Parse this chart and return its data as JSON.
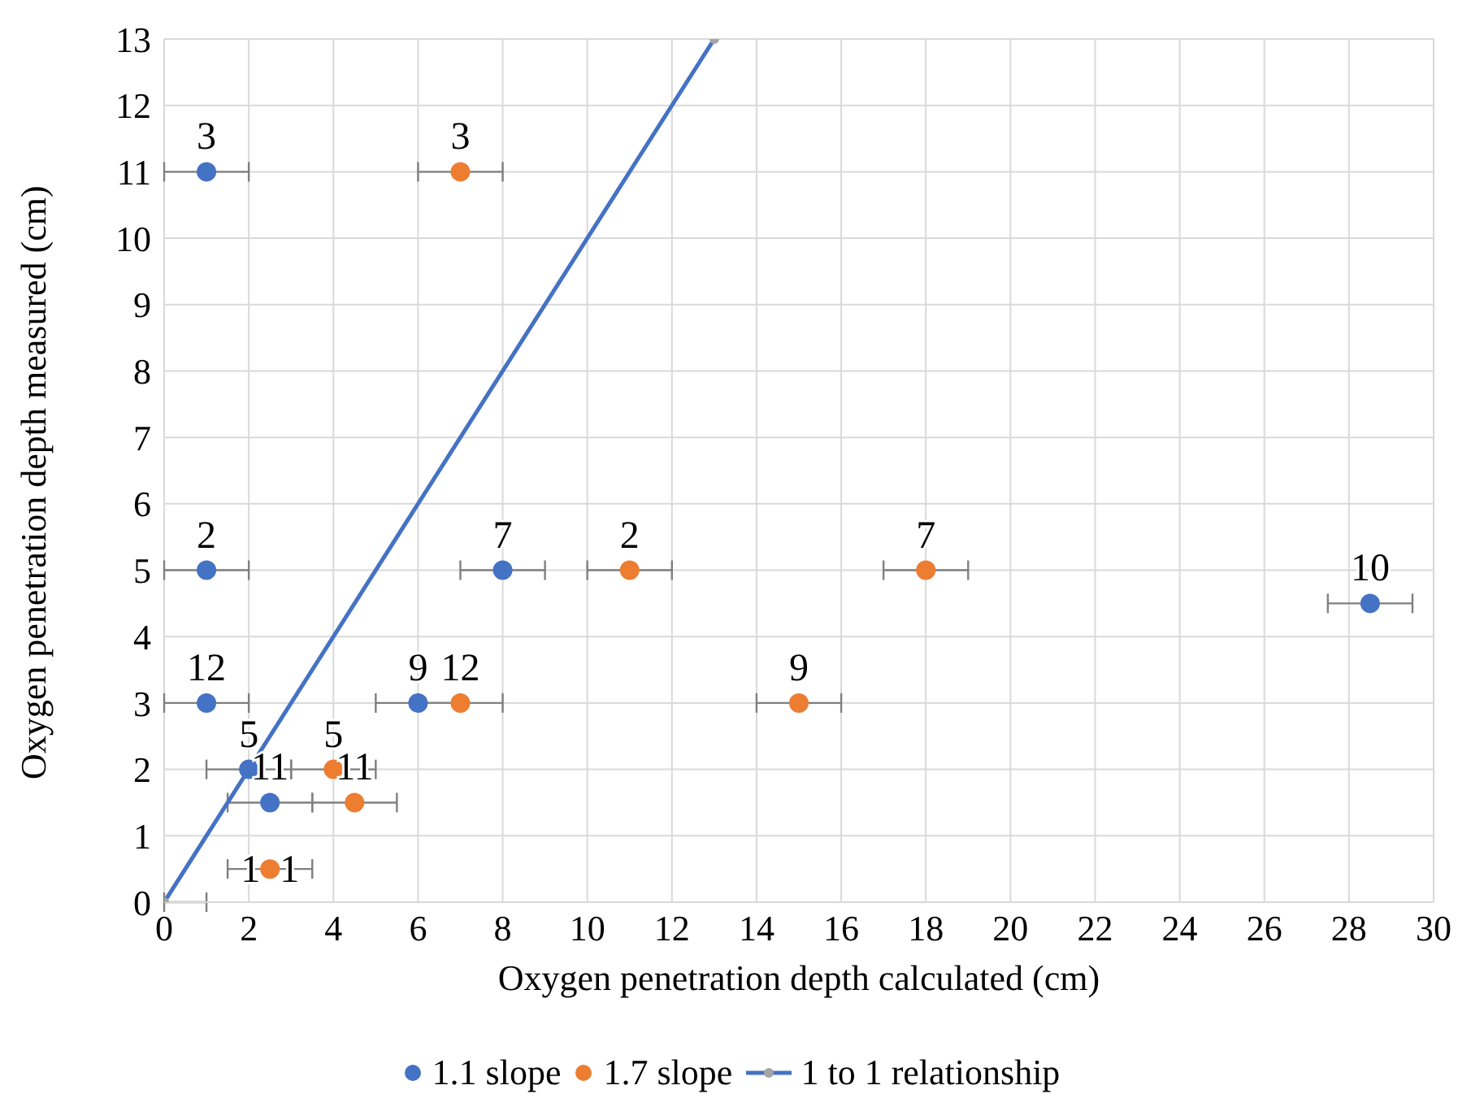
{
  "chart_data": {
    "type": "scatter",
    "xlabel": "Oxygen penetration depth calculated (cm)",
    "ylabel": "Oxygen penetration depth measured (cm)",
    "xlim": [
      0,
      30
    ],
    "xticks": [
      0,
      2,
      4,
      6,
      8,
      10,
      12,
      14,
      16,
      18,
      20,
      22,
      24,
      26,
      28,
      30
    ],
    "ylim": [
      0,
      13
    ],
    "yticks": [
      0,
      1,
      2,
      3,
      4,
      5,
      6,
      7,
      8,
      9,
      10,
      11,
      12,
      13
    ],
    "grid": true,
    "legend": "bottom",
    "marker": "circle",
    "series": [
      {
        "name": "1.1 slope",
        "color": "#4472c4",
        "x": [
          1,
          1,
          1,
          2,
          2.5,
          8,
          6,
          28.5
        ],
        "values": [
          11,
          5,
          3,
          2,
          1.5,
          5,
          3,
          4.5
        ],
        "xerrors": [
          1,
          1,
          1,
          1,
          1,
          1,
          1,
          1
        ]
      },
      {
        "name": "1.7 slope",
        "color": "#ed7d31",
        "x": [
          7,
          11,
          18,
          15,
          7,
          4,
          4.5,
          2.5
        ],
        "values": [
          11,
          5,
          5,
          3,
          3,
          2,
          1.5,
          0.5
        ],
        "xerrors": [
          1,
          1,
          1,
          1,
          1,
          1,
          1,
          1
        ]
      },
      {
        "name": "1 to 1 relationship",
        "type": "line",
        "color": "#4472c4",
        "colors": [
          "#a5a5a5",
          "#a5a5a5"
        ],
        "x": [
          0,
          13
        ],
        "values": [
          0,
          13
        ],
        "xerrors": [
          [
            0,
            1
          ],
          null
        ]
      }
    ],
    "annotations": [
      {
        "text": "3",
        "x": 1,
        "y": 11
      },
      {
        "text": "2",
        "x": 1,
        "y": 5
      },
      {
        "text": "12",
        "x": 1,
        "y": 3
      },
      {
        "text": "5",
        "x": 2,
        "y": 2
      },
      {
        "text": "11",
        "x": 2.5,
        "y": 1.5
      },
      {
        "text": "7",
        "x": 8,
        "y": 5
      },
      {
        "text": "9",
        "x": 6,
        "y": 3
      },
      {
        "text": "10",
        "x": 28.5,
        "y": 4.5
      },
      {
        "text": "1",
        "x": 2.5,
        "y": 0.5
      },
      {
        "text": "3",
        "x": 7,
        "y": 11
      },
      {
        "text": "2",
        "x": 11,
        "y": 5
      },
      {
        "text": "7",
        "x": 18,
        "y": 5
      },
      {
        "text": "9",
        "x": 15,
        "y": 3
      },
      {
        "text": "12",
        "x": 7,
        "y": 3
      },
      {
        "text": "5",
        "x": 4,
        "y": 2
      },
      {
        "text": "11",
        "x": 4.5,
        "y": 1.5
      },
      {
        "text": "1",
        "x": 2.5,
        "y": 0.5
      }
    ]
  }
}
